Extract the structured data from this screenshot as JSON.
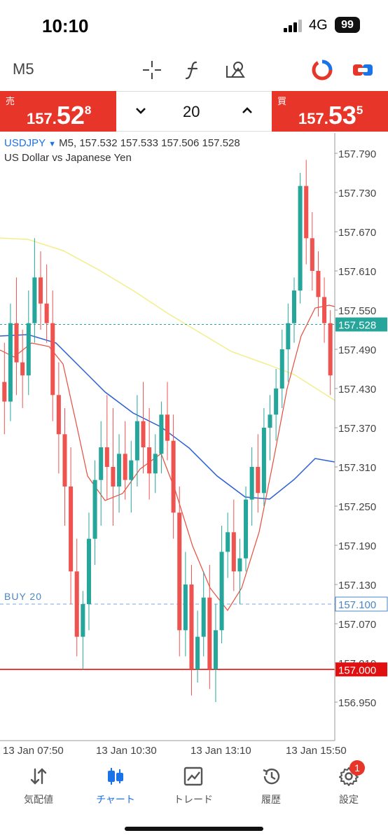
{
  "status_bar": {
    "time": "10:10",
    "network": "4G",
    "battery": "99"
  },
  "toolbar": {
    "timeframe": "M5"
  },
  "quote": {
    "sell": {
      "label": "売",
      "big": "157.",
      "pips": "52",
      "frac": "8"
    },
    "buy": {
      "label": "買",
      "big": "157.",
      "pips": "53",
      "frac": "5"
    },
    "volume": "20"
  },
  "chart": {
    "symbol": "USDJPY",
    "ohlc_line": "M5, 157.532 157.533 157.506 157.528",
    "symbol_name": "US Dollar vs Japanese Yen",
    "buy_order_label": "BUY 20",
    "y_ticks": [
      "157.790",
      "157.730",
      "157.670",
      "157.610",
      "157.550",
      "157.490",
      "157.430",
      "157.370",
      "157.310",
      "157.250",
      "157.190",
      "157.130",
      "157.070",
      "157.010",
      "156.950"
    ],
    "current_price": "157.528",
    "buy_order_price": "157.100",
    "line_price": "157.000",
    "x_ticks": [
      "13 Jan 07:50",
      "13 Jan 10:30",
      "13 Jan 13:10",
      "13 Jan 15:50"
    ]
  },
  "colors": {
    "up": "#26a69a",
    "down": "#ef5350",
    "accent": "#1a73e8",
    "quote_bg": "#e8352a",
    "ma_fast": "#e74c3c",
    "ma_mid": "#2c5fd6",
    "ma_slow": "#f2ef8a"
  },
  "nav": {
    "items": [
      {
        "label": "気配値",
        "icon": "quotes-arrows-icon"
      },
      {
        "label": "チャート",
        "icon": "candles-icon"
      },
      {
        "label": "トレード",
        "icon": "trade-chart-icon"
      },
      {
        "label": "履歴",
        "icon": "history-icon"
      },
      {
        "label": "設定",
        "icon": "gear-icon"
      }
    ],
    "settings_badge": "1"
  }
}
